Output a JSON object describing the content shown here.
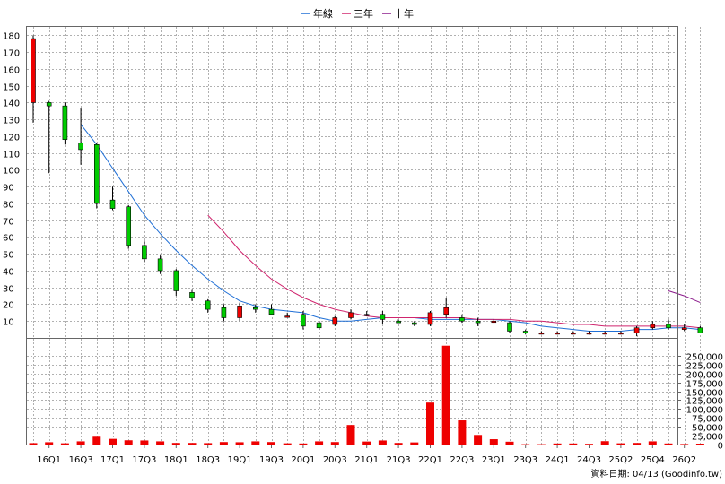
{
  "chart_data": {
    "type": "candlestick-with-volume",
    "legend": [
      {
        "name": "年線",
        "color": "#1f6fd6"
      },
      {
        "name": "三年",
        "color": "#d0256e"
      },
      {
        "name": "十年",
        "color": "#8b1a8b"
      }
    ],
    "price_axis": {
      "ylim": [
        0,
        185
      ],
      "ticks": [
        10,
        20,
        30,
        40,
        50,
        60,
        70,
        80,
        90,
        100,
        110,
        120,
        130,
        140,
        150,
        160,
        170,
        180
      ]
    },
    "volume_axis": {
      "ylim": [
        0,
        300000
      ],
      "ticks": [
        0,
        25000,
        50000,
        75000,
        100000,
        125000,
        150000,
        175000,
        200000,
        225000,
        250000
      ],
      "tick_labels": [
        "0",
        "25,000",
        "50,000",
        "75,000",
        "100,000",
        "125,000",
        "150,000",
        "175,000",
        "200,000",
        "225,000",
        "250,000"
      ]
    },
    "x_labels": [
      "16Q1",
      "16Q3",
      "17Q1",
      "17Q3",
      "18Q1",
      "18Q3",
      "19Q1",
      "19Q3",
      "20Q1",
      "20Q3",
      "21Q1",
      "21Q3",
      "22Q1",
      "22Q3",
      "23Q1",
      "23Q3",
      "24Q1",
      "24Q3",
      "25Q2",
      "25Q4",
      "26Q2"
    ],
    "quarters": [
      "15Q4",
      "16Q1",
      "16Q2",
      "16Q3",
      "16Q4",
      "17Q1",
      "17Q2",
      "17Q3",
      "17Q4",
      "18Q1",
      "18Q2",
      "18Q3",
      "18Q4",
      "19Q1",
      "19Q2",
      "19Q3",
      "19Q4",
      "20Q1",
      "20Q2",
      "20Q3",
      "20Q4",
      "21Q1",
      "21Q2",
      "21Q3",
      "21Q4",
      "22Q1",
      "22Q2",
      "22Q3",
      "22Q4",
      "23Q1",
      "23Q2",
      "23Q3",
      "23Q4",
      "24Q1",
      "24Q2",
      "24Q3",
      "24Q4",
      "25Q1",
      "25Q2",
      "25Q3",
      "25Q4",
      "26Q1",
      "26Q2"
    ],
    "ohlc": [
      [
        140,
        180,
        128,
        178
      ],
      [
        140,
        141,
        98,
        138
      ],
      [
        138,
        140,
        115,
        118
      ],
      [
        116,
        137,
        103,
        112
      ],
      [
        115,
        116,
        77,
        80
      ],
      [
        82,
        90,
        76,
        77
      ],
      [
        78,
        79,
        53,
        55
      ],
      [
        55,
        58,
        45,
        47
      ],
      [
        47,
        49,
        38,
        40
      ],
      [
        40,
        41,
        25,
        28
      ],
      [
        27,
        29,
        22,
        24
      ],
      [
        22,
        23,
        15,
        17
      ],
      [
        18,
        20,
        10,
        12
      ],
      [
        12,
        21,
        10,
        19
      ],
      [
        18,
        20,
        15,
        17
      ],
      [
        17,
        20,
        14,
        14
      ],
      [
        13,
        15,
        12,
        13
      ],
      [
        14,
        16,
        5,
        7
      ],
      [
        9,
        10,
        5,
        6
      ],
      [
        8,
        13,
        7,
        12
      ],
      [
        12,
        17,
        11,
        15
      ],
      [
        14,
        16,
        13,
        14
      ],
      [
        14,
        16,
        8,
        11
      ],
      [
        10,
        11,
        9,
        9
      ],
      [
        9,
        10,
        7,
        8
      ],
      [
        8,
        16,
        7,
        15
      ],
      [
        14,
        24,
        12,
        18
      ],
      [
        12,
        14,
        9,
        10
      ],
      [
        10,
        12,
        7,
        9
      ],
      [
        10,
        11,
        9,
        10
      ],
      [
        9,
        10,
        3,
        4
      ],
      [
        4,
        5,
        2,
        3
      ],
      [
        3,
        4,
        2,
        3
      ],
      [
        3,
        4,
        2,
        3
      ],
      [
        3,
        4,
        2,
        3
      ],
      [
        3,
        4,
        2,
        3
      ],
      [
        3,
        4,
        2,
        3
      ],
      [
        3,
        4,
        2,
        3
      ],
      [
        3,
        7,
        1,
        6
      ],
      [
        6,
        10,
        5,
        8
      ],
      [
        8,
        11,
        5,
        6
      ],
      [
        5,
        8,
        4,
        6
      ],
      [
        6,
        7,
        3,
        3
      ]
    ],
    "volume": [
      4000,
      6500,
      3500,
      9000,
      22000,
      16000,
      12000,
      11500,
      9000,
      4500,
      4500,
      4000,
      7000,
      6500,
      9000,
      7000,
      3500,
      3000,
      9000,
      7000,
      55000,
      8500,
      11500,
      4500,
      6000,
      118000,
      278000,
      68000,
      27000,
      15000,
      8000,
      1000,
      1000,
      3000,
      3000,
      2000,
      9500,
      3500,
      4500,
      9000,
      3000,
      1500,
      2500
    ],
    "ma_year": [
      null,
      null,
      null,
      127,
      115,
      101,
      87,
      73,
      62,
      52,
      43,
      35,
      28,
      22,
      19,
      17,
      16,
      15,
      12,
      10,
      10,
      11,
      12,
      12,
      12,
      11,
      11,
      11,
      11,
      11,
      10,
      9,
      7,
      6,
      5,
      4,
      4,
      4,
      5,
      5,
      6,
      6,
      5
    ],
    "ma_3year": [
      null,
      null,
      null,
      null,
      null,
      null,
      null,
      null,
      null,
      null,
      null,
      73,
      63,
      52,
      43,
      35,
      29,
      24,
      20,
      17,
      15,
      13,
      12,
      12,
      12,
      12,
      12,
      12,
      11,
      11,
      11,
      10,
      10,
      9,
      8,
      8,
      7,
      7,
      7,
      7,
      7,
      7,
      6
    ],
    "ma_10year": [
      null,
      null,
      null,
      null,
      null,
      null,
      null,
      null,
      null,
      null,
      null,
      null,
      null,
      null,
      null,
      null,
      null,
      null,
      null,
      null,
      null,
      null,
      null,
      null,
      null,
      null,
      null,
      null,
      null,
      null,
      null,
      null,
      null,
      null,
      null,
      null,
      null,
      null,
      null,
      null,
      28,
      25,
      21
    ]
  },
  "footer": {
    "date_label": "資料日期: 04/13 (Goodinfo.tw)"
  }
}
